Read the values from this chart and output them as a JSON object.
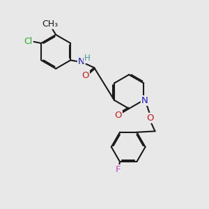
{
  "bg": "#e8e8e8",
  "bond_color": "#1a1a1a",
  "bw": 1.5,
  "dbo": 0.055,
  "colors": {
    "N": "#1a1acc",
    "O": "#cc1a1a",
    "Cl": "#22aa22",
    "F": "#cc44cc",
    "H": "#4a9999",
    "C": "#1a1a1a"
  },
  "fs": 9.5
}
